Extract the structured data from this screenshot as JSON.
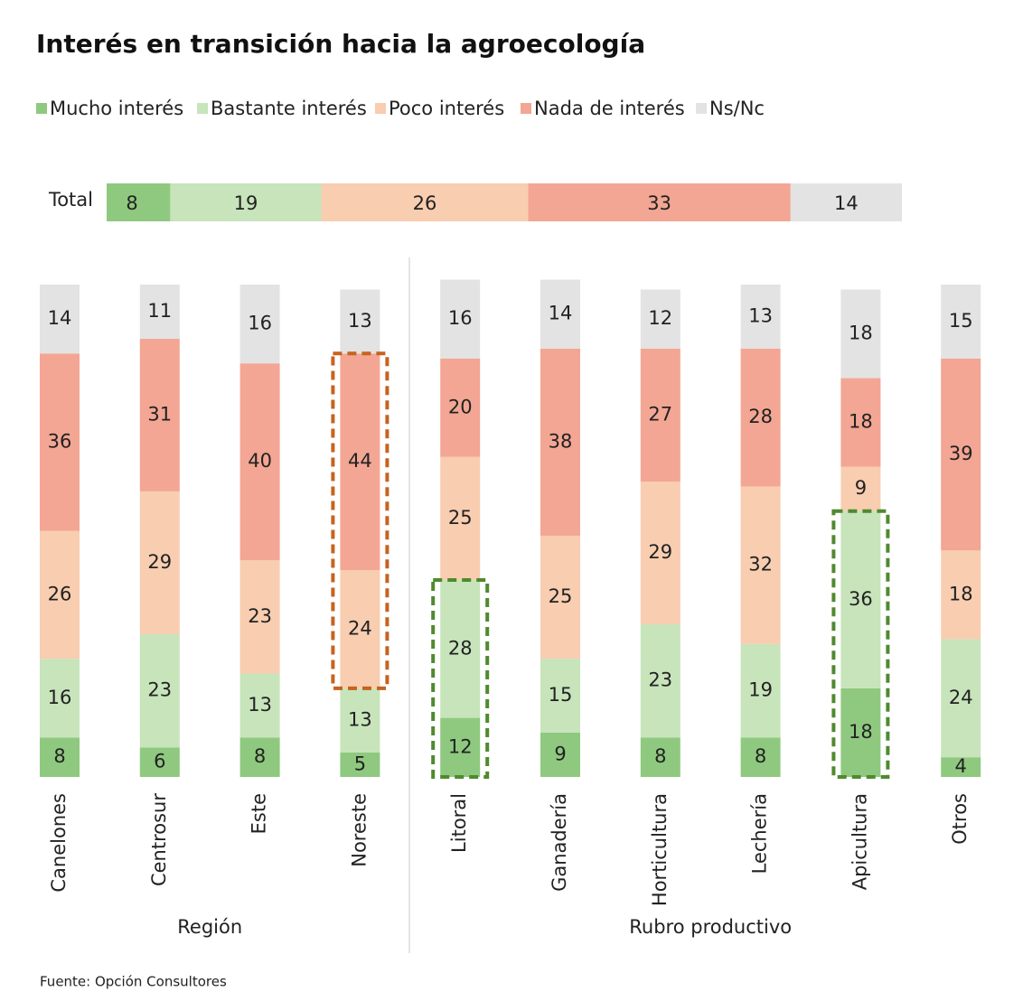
{
  "chart_data": {
    "type": "stacked-bar",
    "title": "Interés en transición hacia la agroecología",
    "source": "Fuente: Opción Consultores",
    "categories": [
      "Canelones",
      "Centrosur",
      "Este",
      "Noreste",
      "Litoral",
      "Ganadería",
      "Horticultura",
      "Lechería",
      "Apicultura",
      "Otros"
    ],
    "groups": [
      {
        "label": "Región",
        "start": 0,
        "end": 3
      },
      {
        "label": "Rubro productivo",
        "start": 4,
        "end": 9
      }
    ],
    "total": {
      "label": "Total",
      "values": [
        8,
        19,
        26,
        33,
        14
      ]
    },
    "series": [
      {
        "name": "Mucho interés",
        "color": "#8fc97f",
        "values": [
          8,
          6,
          8,
          5,
          12,
          9,
          8,
          8,
          18,
          4
        ]
      },
      {
        "name": "Bastante interés",
        "color": "#c7e4bb",
        "values": [
          16,
          23,
          13,
          13,
          28,
          15,
          23,
          19,
          36,
          24
        ]
      },
      {
        "name": "Poco interés",
        "color": "#f8cdb0",
        "values": [
          26,
          29,
          23,
          24,
          25,
          25,
          29,
          32,
          9,
          18
        ]
      },
      {
        "name": "Nada de interés",
        "color": "#f3a693",
        "values": [
          36,
          31,
          40,
          44,
          20,
          38,
          27,
          28,
          18,
          39
        ]
      },
      {
        "name": "Ns/Nc",
        "color": "#e3e3e3",
        "values": [
          14,
          11,
          16,
          13,
          16,
          14,
          12,
          13,
          18,
          15
        ]
      }
    ],
    "highlights": [
      {
        "category": 3,
        "series": [
          2,
          3
        ],
        "color": "#c8621e"
      },
      {
        "category": 4,
        "series": [
          0,
          1
        ],
        "color": "#4f8a2e"
      },
      {
        "category": 8,
        "series": [
          0,
          1
        ],
        "color": "#4f8a2e"
      }
    ]
  }
}
